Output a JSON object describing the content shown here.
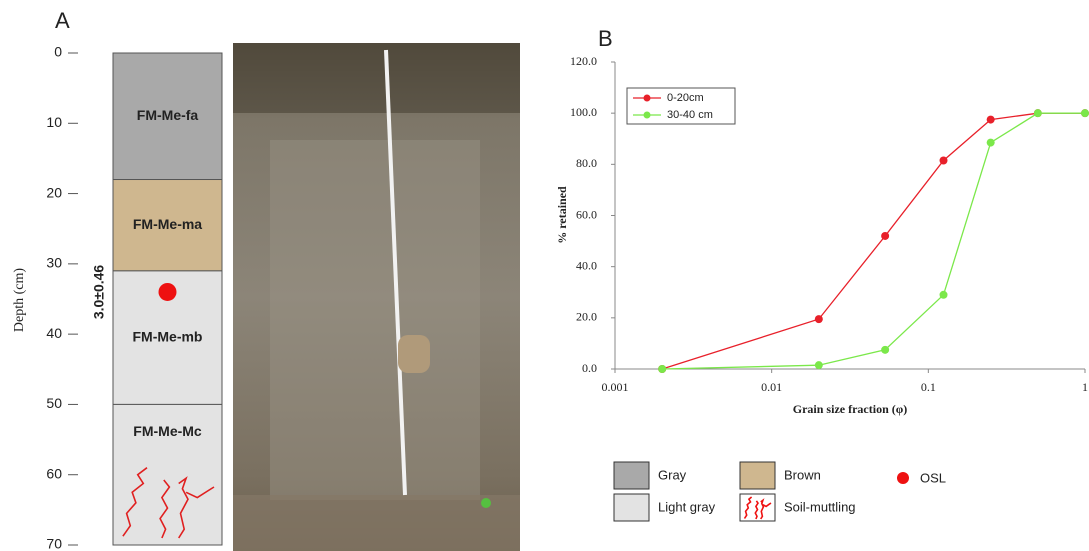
{
  "chart_data": [
    {
      "type": "column",
      "panel_label": "A",
      "ylabel": "Depth (cm)",
      "ylim": [
        0,
        70
      ],
      "yticks": [
        0,
        10,
        20,
        30,
        40,
        50,
        60,
        70
      ],
      "layers": [
        {
          "name": "FM-Me-fa",
          "top": 0,
          "bottom": 18,
          "color": "#a9a9a9"
        },
        {
          "name": "FM-Me-ma",
          "top": 18,
          "bottom": 31,
          "color": "#cfb78f"
        },
        {
          "name": "FM-Me-mb",
          "top": 31,
          "bottom": 50,
          "color": "#e3e3e3"
        },
        {
          "name": "FM-Me-Mc",
          "top": 50,
          "bottom": 70,
          "color": "#e3e3e3",
          "mottling": true
        }
      ],
      "samples": [
        {
          "depth": 34,
          "label": "3.0±0.46",
          "color": "#ee1111"
        }
      ],
      "legend": [
        {
          "name": "Gray",
          "color": "#a9a9a9",
          "marker": "square"
        },
        {
          "name": "Brown",
          "color": "#cfb78f",
          "marker": "square"
        },
        {
          "name": "OSL",
          "color": "#ee1111",
          "marker": "circle"
        },
        {
          "name": "Light gray",
          "color": "#e3e3e3",
          "marker": "square"
        },
        {
          "name": "Soil-muttling",
          "color": "#ee1111",
          "marker": "mottling"
        }
      ]
    },
    {
      "type": "line",
      "panel_label": "B",
      "xlabel": "Grain size fraction (φ)",
      "ylabel": "% retained",
      "xscale": "log",
      "xlim": [
        0.001,
        1
      ],
      "xticks": [
        0.001,
        0.01,
        0.1,
        1
      ],
      "ylim": [
        0,
        120
      ],
      "yticks": [
        {
          "value": 0,
          "label": "0.0"
        },
        {
          "value": 20,
          "label": "20.0"
        },
        {
          "value": 40,
          "label": "40.0"
        },
        {
          "value": 60,
          "label": "60.0"
        },
        {
          "value": 80,
          "label": "80.0"
        },
        {
          "value": 100,
          "label": "100.0"
        },
        {
          "value": 120,
          "label": "120.0"
        }
      ],
      "legend_position": "upper left",
      "x": [
        0.002,
        0.02,
        0.053,
        0.125,
        0.25,
        0.5,
        1
      ],
      "series": [
        {
          "name": "0-20cm",
          "color": "#e8202a",
          "values": [
            0,
            19.5,
            52,
            81.5,
            97.5,
            100,
            100
          ]
        },
        {
          "name": "30-40 cm",
          "color": "#7be84a",
          "values": [
            0,
            1.5,
            7.5,
            29,
            88.5,
            100,
            100
          ]
        }
      ]
    }
  ]
}
